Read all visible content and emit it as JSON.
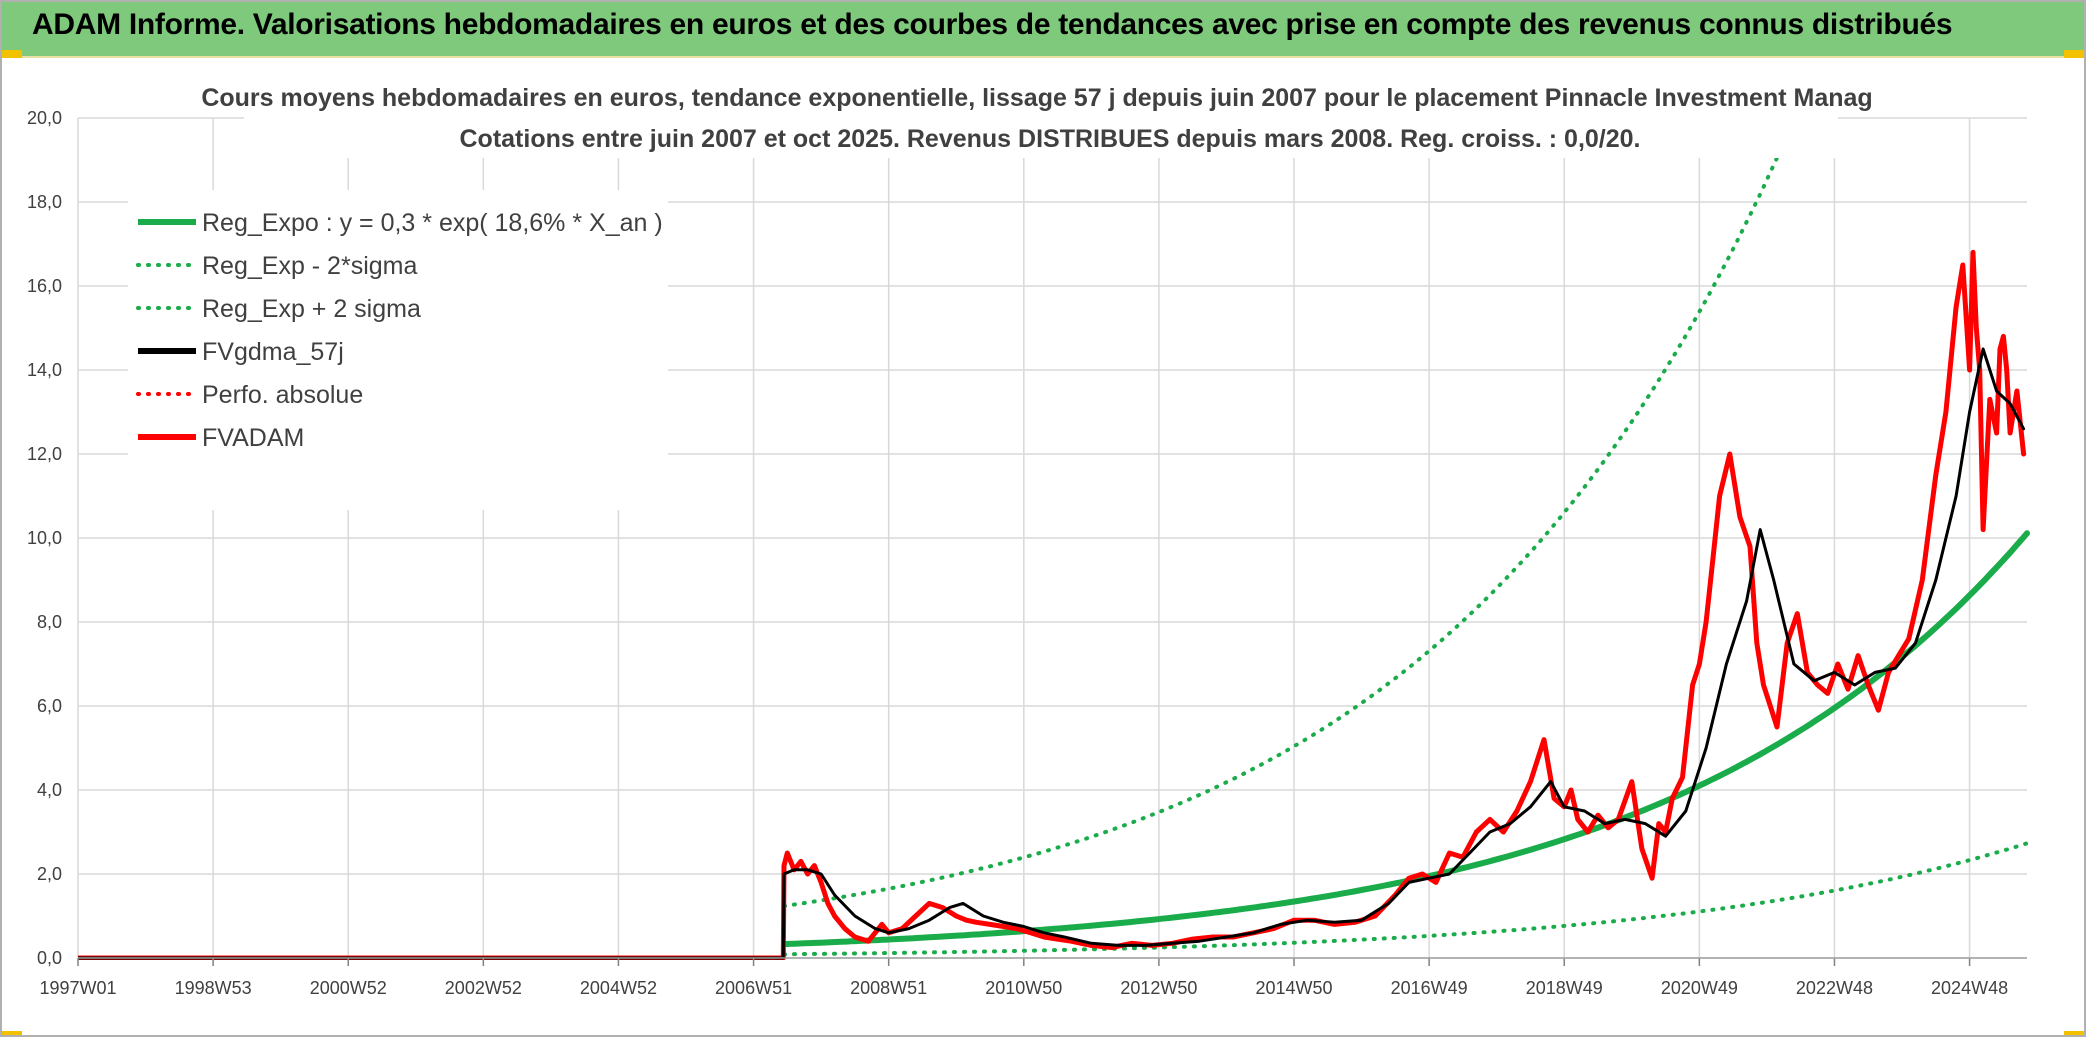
{
  "header": {
    "title": "ADAM Informe. Valorisations hebdomadaires en euros et des courbes de tendances avec prise en compte des revenus connus distribués"
  },
  "chart_data": {
    "type": "line",
    "title_line1": "Cours moyens hebdomadaires en euros, tendance exponentielle, lissage 57 j depuis juin 2007 pour le placement Pinnacle Investment Manag",
    "title_line2": "Cotations entre juin 2007 et oct 2025. Revenus DISTRIBUES depuis mars 2008. Reg. croiss. : 0,0/20.",
    "xlabel": "",
    "ylabel": "",
    "xlim": [
      1997.0,
      2025.85
    ],
    "ylim": [
      0,
      20
    ],
    "yticks": [
      "0,0",
      "2,0",
      "4,0",
      "6,0",
      "8,0",
      "10,0",
      "12,0",
      "14,0",
      "16,0",
      "18,0",
      "20,0"
    ],
    "xticks": [
      {
        "label": "1997W01",
        "x": 1997.0
      },
      {
        "label": "1998W53",
        "x": 1999.0
      },
      {
        "label": "2000W52",
        "x": 2001.0
      },
      {
        "label": "2002W52",
        "x": 2003.0
      },
      {
        "label": "2004W52",
        "x": 2005.0
      },
      {
        "label": "2006W51",
        "x": 2007.0
      },
      {
        "label": "2008W51",
        "x": 2009.0
      },
      {
        "label": "2010W50",
        "x": 2011.0
      },
      {
        "label": "2012W50",
        "x": 2013.0
      },
      {
        "label": "2014W50",
        "x": 2015.0
      },
      {
        "label": "2016W49",
        "x": 2017.0
      },
      {
        "label": "2018W49",
        "x": 2019.0
      },
      {
        "label": "2020W49",
        "x": 2021.0
      },
      {
        "label": "2022W48",
        "x": 2023.0
      },
      {
        "label": "2024W48",
        "x": 2025.0
      }
    ],
    "series": [
      {
        "name": "Reg_Expo : y = 0,3 * exp( 18,6% *  X_an )",
        "color": "#1aac4a",
        "style": "solid",
        "width": 6,
        "formula": {
          "a": 0.33,
          "b": 0.186,
          "t0": 2007.45,
          "mult": 1.0,
          "start": 2007.45,
          "end": 2025.85
        }
      },
      {
        "name": "Reg_Exp - 2*sigma",
        "color": "#1aac4a",
        "style": "dotted",
        "width": 4,
        "formula": {
          "a": 0.33,
          "b": 0.186,
          "t0": 2007.45,
          "mult": 0.27,
          "start": 2007.45,
          "end": 2025.85
        }
      },
      {
        "name": "Reg_Exp + 2 sigma",
        "color": "#1aac4a",
        "style": "dotted",
        "width": 4,
        "formula": {
          "a": 0.33,
          "b": 0.186,
          "t0": 2007.45,
          "mult": 3.75,
          "start": 2007.45,
          "end": 2025.85
        }
      },
      {
        "name": "FVgdma_57j",
        "color": "#000000",
        "style": "solid",
        "width": 3,
        "x": [
          1997.0,
          2007.44,
          2007.45,
          2007.6,
          2007.8,
          2008.0,
          2008.2,
          2008.5,
          2008.8,
          2009.0,
          2009.3,
          2009.6,
          2009.9,
          2010.1,
          2010.4,
          2010.7,
          2011.0,
          2011.3,
          2011.6,
          2012.0,
          2012.4,
          2012.8,
          2013.2,
          2013.6,
          2014.0,
          2014.4,
          2014.8,
          2015.2,
          2015.6,
          2016.0,
          2016.4,
          2016.7,
          2017.0,
          2017.3,
          2017.6,
          2017.9,
          2018.2,
          2018.5,
          2018.8,
          2019.0,
          2019.3,
          2019.6,
          2019.9,
          2020.2,
          2020.5,
          2020.8,
          2021.1,
          2021.4,
          2021.7,
          2021.9,
          2022.1,
          2022.4,
          2022.7,
          2023.0,
          2023.3,
          2023.6,
          2023.9,
          2024.2,
          2024.5,
          2024.8,
          2025.0,
          2025.2,
          2025.4,
          2025.6,
          2025.8
        ],
        "y": [
          0.0,
          0.0,
          2.0,
          2.1,
          2.1,
          2.0,
          1.5,
          1.0,
          0.7,
          0.6,
          0.7,
          0.9,
          1.2,
          1.3,
          1.0,
          0.85,
          0.75,
          0.6,
          0.5,
          0.35,
          0.3,
          0.3,
          0.35,
          0.4,
          0.5,
          0.6,
          0.8,
          0.9,
          0.85,
          0.9,
          1.3,
          1.8,
          1.9,
          2.0,
          2.5,
          3.0,
          3.2,
          3.6,
          4.2,
          3.6,
          3.5,
          3.2,
          3.3,
          3.2,
          2.9,
          3.5,
          5.0,
          7.0,
          8.5,
          10.2,
          9.0,
          7.0,
          6.6,
          6.8,
          6.5,
          6.8,
          6.9,
          7.5,
          9.0,
          11.0,
          13.0,
          14.5,
          13.5,
          13.2,
          12.6
        ]
      },
      {
        "name": "Perfo. absolue",
        "color": "#ff0000",
        "style": "dotted",
        "width": 3,
        "x": [
          1997.0,
          2007.44
        ],
        "y": [
          0.0,
          0.0
        ]
      },
      {
        "name": "FVADAM",
        "color": "#ff0000",
        "style": "solid",
        "width": 5,
        "x": [
          1997.0,
          2007.44,
          2007.45,
          2007.5,
          2007.6,
          2007.7,
          2007.8,
          2007.9,
          2008.0,
          2008.1,
          2008.2,
          2008.35,
          2008.5,
          2008.7,
          2008.9,
          2009.0,
          2009.2,
          2009.4,
          2009.6,
          2009.8,
          2010.0,
          2010.15,
          2010.3,
          2010.5,
          2010.7,
          2010.9,
          2011.1,
          2011.3,
          2011.5,
          2011.7,
          2012.0,
          2012.3,
          2012.6,
          2012.9,
          2013.2,
          2013.5,
          2013.8,
          2014.1,
          2014.4,
          2014.7,
          2015.0,
          2015.3,
          2015.6,
          2015.9,
          2016.2,
          2016.5,
          2016.7,
          2016.9,
          2017.1,
          2017.3,
          2017.5,
          2017.7,
          2017.9,
          2018.1,
          2018.3,
          2018.5,
          2018.7,
          2018.85,
          2019.0,
          2019.1,
          2019.2,
          2019.35,
          2019.5,
          2019.65,
          2019.8,
          2020.0,
          2020.15,
          2020.3,
          2020.4,
          2020.5,
          2020.6,
          2020.75,
          2020.9,
          2021.0,
          2021.1,
          2021.2,
          2021.3,
          2021.45,
          2021.6,
          2021.75,
          2021.85,
          2021.95,
          2022.05,
          2022.15,
          2022.3,
          2022.45,
          2022.6,
          2022.75,
          2022.9,
          2023.05,
          2023.2,
          2023.35,
          2023.5,
          2023.65,
          2023.8,
          2023.95,
          2024.1,
          2024.3,
          2024.5,
          2024.65,
          2024.8,
          2024.9,
          2025.0,
          2025.05,
          2025.1,
          2025.15,
          2025.2,
          2025.3,
          2025.4,
          2025.45,
          2025.5,
          2025.55,
          2025.6,
          2025.7,
          2025.8
        ],
        "y": [
          0.0,
          0.0,
          2.2,
          2.5,
          2.1,
          2.3,
          2.0,
          2.2,
          1.8,
          1.3,
          1.0,
          0.7,
          0.5,
          0.4,
          0.8,
          0.6,
          0.7,
          1.0,
          1.3,
          1.2,
          1.0,
          0.9,
          0.85,
          0.8,
          0.75,
          0.7,
          0.6,
          0.5,
          0.45,
          0.4,
          0.3,
          0.25,
          0.35,
          0.3,
          0.35,
          0.45,
          0.5,
          0.5,
          0.6,
          0.7,
          0.9,
          0.9,
          0.8,
          0.85,
          1.0,
          1.5,
          1.9,
          2.0,
          1.8,
          2.5,
          2.4,
          3.0,
          3.3,
          3.0,
          3.5,
          4.2,
          5.2,
          3.8,
          3.6,
          4.0,
          3.3,
          3.0,
          3.4,
          3.1,
          3.3,
          4.2,
          2.6,
          1.9,
          3.2,
          3.0,
          3.8,
          4.3,
          6.5,
          7.0,
          8.0,
          9.5,
          11.0,
          12.0,
          10.5,
          9.8,
          7.5,
          6.5,
          6.0,
          5.5,
          7.5,
          8.2,
          6.8,
          6.5,
          6.3,
          7.0,
          6.4,
          7.2,
          6.5,
          5.9,
          6.8,
          7.2,
          7.6,
          9.0,
          11.5,
          13.0,
          15.5,
          16.5,
          14.0,
          16.8,
          15.0,
          14.0,
          10.2,
          13.3,
          12.5,
          14.5,
          14.8,
          14.0,
          12.5,
          13.5,
          12.0
        ]
      }
    ]
  }
}
